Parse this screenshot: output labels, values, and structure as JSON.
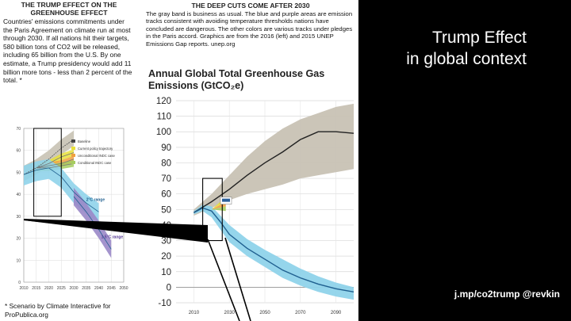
{
  "left_panel": {
    "title": "THE TRUMP EFFECT ON THE GREENHOUSE EFFECT",
    "body": "Countries' emissions commitments under the Paris Agreement on climate run at most through 2030. If all nations hit their targets, 580 billion tons of CO2 will be released, including 65 billion from the U.S. By one estimate, a Trump presidency would add 11 billion more tons - less than 2 percent of the total. *",
    "footnote": "* Scenario by Climate Interactive for ProPublica.org"
  },
  "middle_panel": {
    "title": "THE DEEP CUTS COME AFTER 2030",
    "body": "The gray band is business as usual. The blue and purple areas are emission tracks consistent with avoiding temperature thresholds nations have concluded are dangerous. The other colors are various tracks under pledges in the Paris accord. Graphics are from the 2016 (left) and 2015 UNEP Emissions Gap reports. unep.org",
    "chart_title": "Annual Global Total Greenhouse Gas Emissions (GtCO₂e)"
  },
  "right_panel": {
    "slide_title_line1": "Trump Effect",
    "slide_title_line2": "in global context",
    "credit": "j.mp/co2trump @revkin"
  },
  "colors": {
    "background_right": "#000000",
    "baseline_band": "#c8c2b4",
    "two_degree_band": "#8fd3ea",
    "one_point_five_band": "#9a88c8",
    "center_line": "#1f5f8f",
    "pledge_yellow": "#e8e03a",
    "pledge_orange": "#f0a040",
    "pledge_green": "#a6cc60"
  },
  "chart_data": [
    {
      "type": "area",
      "xlim": [
        2010,
        2050
      ],
      "ylim": [
        0,
        70
      ],
      "yticks": [
        0,
        10,
        20,
        30,
        40,
        50,
        60,
        70
      ],
      "xticks": [
        2010,
        2015,
        2020,
        2025,
        2030,
        2035,
        2040,
        2045,
        2050
      ],
      "grid": true,
      "legend_placement": "top-center",
      "legend": [
        "Baseline",
        "Current policy trajectory",
        "Unconditional INDC case",
        "Conditional INDC case"
      ],
      "band_labels": [
        "2°C range",
        "1.5°C range"
      ],
      "series": [
        {
          "name": "Baseline",
          "x": [
            2010,
            2015,
            2020,
            2025,
            2030
          ],
          "values": [
            49,
            52,
            56,
            61,
            65
          ]
        },
        {
          "name": "Current policy trajectory",
          "x": [
            2015,
            2020,
            2025,
            2030
          ],
          "values": [
            52,
            54,
            57,
            59
          ]
        },
        {
          "name": "Unconditional INDC case",
          "x": [
            2015,
            2020,
            2025,
            2030
          ],
          "values": [
            52,
            53,
            54,
            56
          ]
        },
        {
          "name": "Conditional INDC case",
          "x": [
            2015,
            2020,
            2025,
            2030
          ],
          "values": [
            52,
            52,
            53,
            54
          ]
        },
        {
          "name": "2°C range",
          "x": [
            2010,
            2015,
            2020,
            2025,
            2030,
            2035,
            2040
          ],
          "values": [
            49,
            51,
            52,
            48,
            41,
            36,
            32
          ]
        },
        {
          "name": "1.5°C range",
          "x": [
            2030,
            2035,
            2040,
            2045
          ],
          "values": [
            39,
            32,
            24,
            15
          ]
        }
      ]
    },
    {
      "type": "area",
      "xlim": [
        2000,
        2100
      ],
      "ylim": [
        -10,
        120
      ],
      "yticks": [
        -10,
        0,
        10,
        20,
        30,
        40,
        50,
        60,
        70,
        80,
        90,
        100,
        110,
        120
      ],
      "xticks": [
        2010,
        2030,
        2050,
        2070,
        2090
      ],
      "grid": true,
      "series": [
        {
          "name": "Baseline",
          "x": [
            2010,
            2020,
            2030,
            2040,
            2050,
            2060,
            2070,
            2080,
            2090,
            2100
          ],
          "values": [
            48,
            55,
            63,
            72,
            80,
            87,
            95,
            100,
            100,
            99
          ]
        },
        {
          "name": "Baseline band high",
          "x": [
            2010,
            2020,
            2030,
            2040,
            2050,
            2060,
            2070,
            2080,
            2090,
            2100
          ],
          "values": [
            50,
            60,
            72,
            84,
            94,
            102,
            108,
            112,
            116,
            118
          ]
        },
        {
          "name": "Baseline band low",
          "x": [
            2010,
            2020,
            2030,
            2040,
            2050,
            2060,
            2070,
            2080,
            2090,
            2100
          ],
          "values": [
            46,
            51,
            56,
            60,
            63,
            66,
            70,
            72,
            74,
            76
          ]
        },
        {
          "name": "Central pathway",
          "x": [
            2010,
            2015,
            2020,
            2025,
            2030,
            2040,
            2050,
            2060,
            2070,
            2080,
            2090,
            2100
          ],
          "values": [
            48,
            51,
            49,
            42,
            34,
            25,
            18,
            11,
            6,
            2,
            -1,
            -3
          ]
        },
        {
          "name": "Pathway band high",
          "x": [
            2010,
            2015,
            2020,
            2025,
            2030,
            2040,
            2050,
            2060,
            2070,
            2080,
            2090,
            2100
          ],
          "values": [
            49,
            53,
            52,
            46,
            40,
            31,
            24,
            18,
            12,
            7,
            3,
            0
          ]
        },
        {
          "name": "Pathway band low",
          "x": [
            2010,
            2015,
            2020,
            2025,
            2030,
            2040,
            2050,
            2060,
            2070,
            2080,
            2090,
            2100
          ],
          "values": [
            47,
            49,
            45,
            37,
            29,
            20,
            13,
            6,
            1,
            -3,
            -6,
            -8
          ]
        }
      ]
    }
  ]
}
